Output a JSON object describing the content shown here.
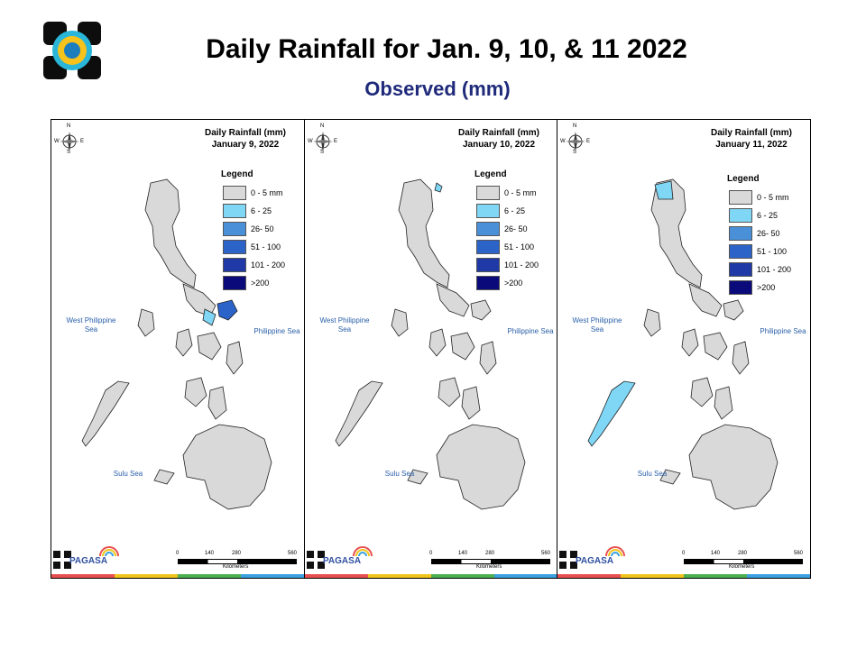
{
  "header": {
    "title": "Daily Rainfall for Jan. 9, 10, & 11 2022",
    "subtitle": "Observed (mm)"
  },
  "legend": {
    "title": "Legend",
    "classes": [
      {
        "label": "0 - 5 mm",
        "color": "#d9d9d9"
      },
      {
        "label": "6 - 25",
        "color": "#7fd6f5"
      },
      {
        "label": "26- 50",
        "color": "#4a90d9"
      },
      {
        "label": "51 - 100",
        "color": "#2b63c9"
      },
      {
        "label": "101 - 200",
        "color": "#1f3aa6"
      },
      {
        "label": ">200",
        "color": "#0a0a7a"
      }
    ]
  },
  "panels": [
    {
      "title": "Daily Rainfall (mm)",
      "date": "January 9, 2022"
    },
    {
      "title": "Daily Rainfall (mm)",
      "date": "January 10, 2022"
    },
    {
      "title": "Daily Rainfall (mm)",
      "date": "January 11, 2022"
    }
  ],
  "seas": {
    "west": "West Philippine Sea",
    "east": "Philippine Sea",
    "sulu": "Sulu Sea"
  },
  "compass": {
    "n": "N",
    "s": "S",
    "e": "E",
    "w": "W"
  },
  "scale": {
    "ticks": [
      "0",
      "140",
      "280",
      "560"
    ],
    "unit": "Kilometers"
  },
  "branding": {
    "name": "PAGASA",
    "strip_colors": [
      "#e8504f",
      "#f0c419",
      "#4caf50",
      "#3aa0e0"
    ]
  }
}
